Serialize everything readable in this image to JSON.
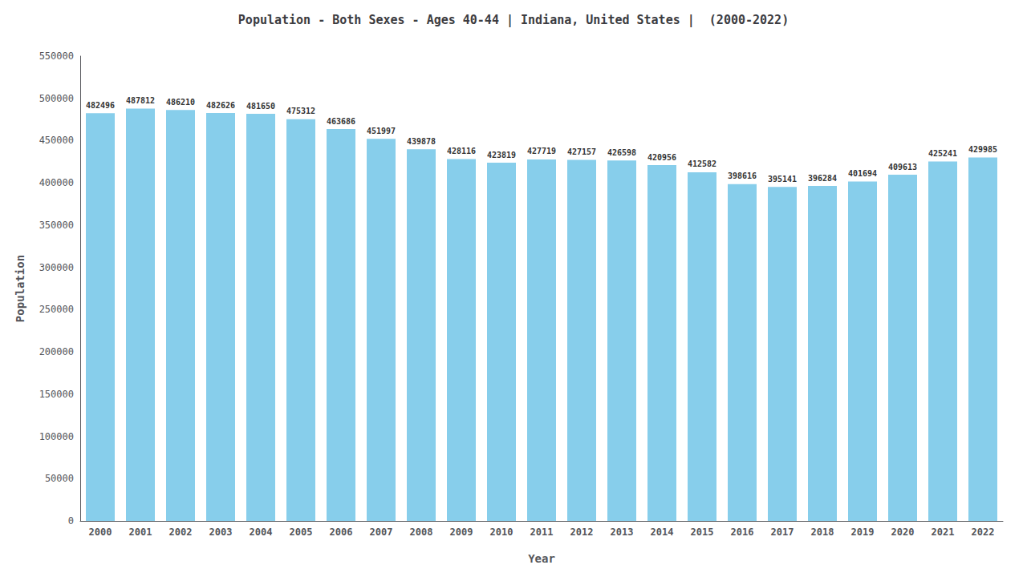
{
  "chart_data": {
    "type": "bar",
    "title": "Population - Both Sexes - Ages 40-44 | Indiana, United States |  (2000-2022)",
    "x_label": "Year",
    "y_label": "Population",
    "categories": [
      "2000",
      "2001",
      "2002",
      "2003",
      "2004",
      "2005",
      "2006",
      "2007",
      "2008",
      "2009",
      "2010",
      "2011",
      "2012",
      "2013",
      "2014",
      "2015",
      "2016",
      "2017",
      "2018",
      "2019",
      "2020",
      "2021",
      "2022"
    ],
    "values": [
      482496,
      487812,
      486210,
      482626,
      481650,
      475312,
      463686,
      451997,
      439878,
      428116,
      423819,
      427719,
      427157,
      426598,
      420956,
      412582,
      398616,
      395141,
      396284,
      401694,
      409613,
      425241,
      429985
    ],
    "color": "#87CEEB",
    "ylim": [
      0,
      550000
    ],
    "yticks": [
      0,
      50000,
      100000,
      150000,
      200000,
      250000,
      300000,
      350000,
      400000,
      450000,
      500000,
      550000
    ],
    "data_labels": true,
    "grid": false
  }
}
